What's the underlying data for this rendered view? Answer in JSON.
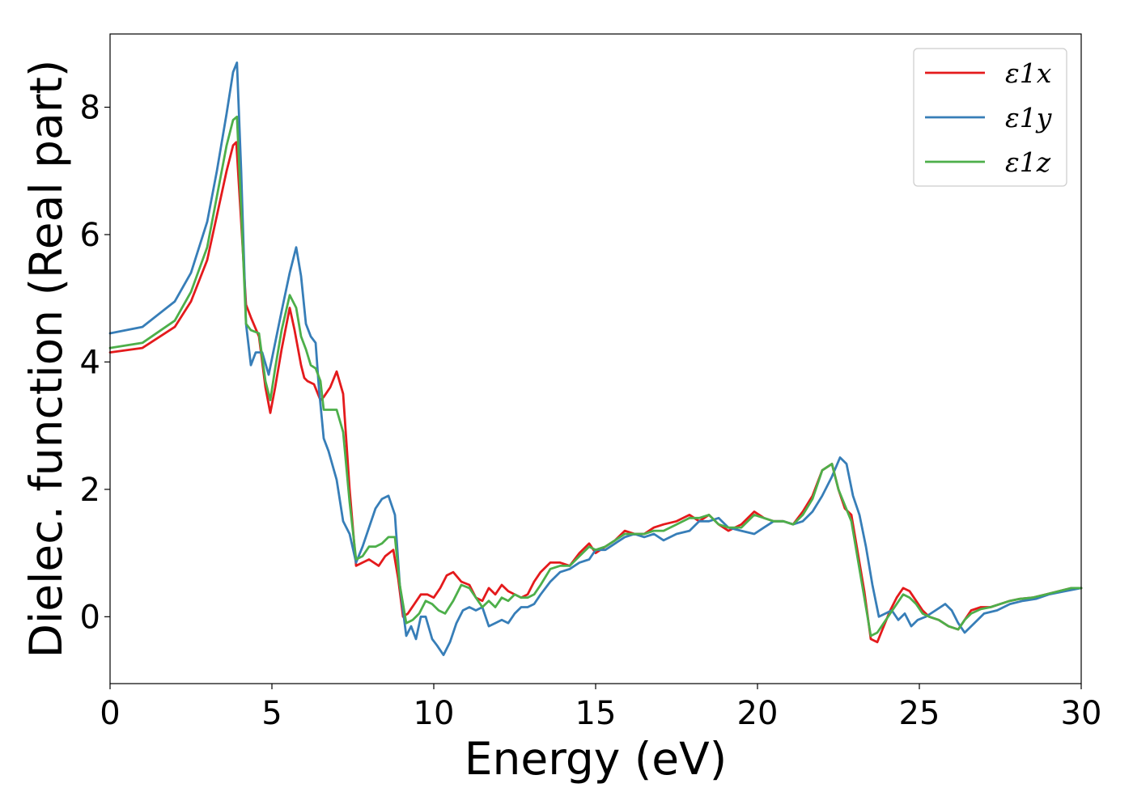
{
  "chart_data": {
    "type": "line",
    "title": "",
    "xlabel": "Energy (eV)",
    "ylabel": "Dielec. function (Real part)",
    "xlim": [
      0,
      30
    ],
    "ylim": [
      -1.05,
      9.15
    ],
    "xticks": [
      0,
      5,
      10,
      15,
      20,
      25,
      30
    ],
    "yticks": [
      0,
      2,
      4,
      6,
      8
    ],
    "grid": false,
    "legend_position": "top-right",
    "series": [
      {
        "name": "ε1x",
        "color": "#e41a1c",
        "x": [
          0,
          1,
          2,
          2.5,
          3,
          3.3,
          3.6,
          3.8,
          3.9,
          4.05,
          4.2,
          4.35,
          4.6,
          4.8,
          4.95,
          5.1,
          5.3,
          5.55,
          5.7,
          5.9,
          6.0,
          6.1,
          6.3,
          6.5,
          6.6,
          6.8,
          7.0,
          7.2,
          7.4,
          7.6,
          7.8,
          8.0,
          8.3,
          8.5,
          8.75,
          8.9,
          9.05,
          9.2,
          9.4,
          9.6,
          9.8,
          10.0,
          10.2,
          10.4,
          10.6,
          10.85,
          11.1,
          11.3,
          11.5,
          11.7,
          11.9,
          12.1,
          12.3,
          12.5,
          12.7,
          12.9,
          13.1,
          13.3,
          13.6,
          13.9,
          14.2,
          14.5,
          14.8,
          15.0,
          15.3,
          15.6,
          15.9,
          16.2,
          16.5,
          16.8,
          17.1,
          17.5,
          17.9,
          18.2,
          18.5,
          18.8,
          19.1,
          19.5,
          19.9,
          20.2,
          20.5,
          20.8,
          21.1,
          21.4,
          21.7,
          22.0,
          22.3,
          22.5,
          22.7,
          22.9,
          23.1,
          23.3,
          23.5,
          23.7,
          23.9,
          24.1,
          24.3,
          24.5,
          24.7,
          24.9,
          25.1,
          25.3,
          25.6,
          25.9,
          26.2,
          26.4,
          26.6,
          26.9,
          27.2,
          27.5,
          27.8,
          28.1,
          28.5,
          28.9,
          29.3,
          29.7,
          30.0
        ],
        "values": [
          4.15,
          4.22,
          4.55,
          4.95,
          5.6,
          6.3,
          7.0,
          7.4,
          7.45,
          6.2,
          4.9,
          4.7,
          4.4,
          3.6,
          3.2,
          3.6,
          4.2,
          4.85,
          4.5,
          3.95,
          3.75,
          3.7,
          3.65,
          3.4,
          3.45,
          3.6,
          3.85,
          3.5,
          2.0,
          0.8,
          0.85,
          0.9,
          0.8,
          0.95,
          1.05,
          0.6,
          0.0,
          0.05,
          0.2,
          0.35,
          0.35,
          0.3,
          0.45,
          0.65,
          0.7,
          0.55,
          0.5,
          0.3,
          0.25,
          0.45,
          0.35,
          0.5,
          0.4,
          0.35,
          0.3,
          0.35,
          0.55,
          0.7,
          0.85,
          0.85,
          0.8,
          1.0,
          1.15,
          1.0,
          1.1,
          1.2,
          1.35,
          1.3,
          1.3,
          1.4,
          1.45,
          1.5,
          1.6,
          1.5,
          1.6,
          1.45,
          1.35,
          1.45,
          1.65,
          1.55,
          1.5,
          1.5,
          1.45,
          1.65,
          1.9,
          2.3,
          2.4,
          2.0,
          1.7,
          1.6,
          1.0,
          0.4,
          -0.35,
          -0.4,
          -0.15,
          0.1,
          0.3,
          0.45,
          0.4,
          0.25,
          0.1,
          0.0,
          -0.05,
          -0.15,
          -0.2,
          -0.05,
          0.1,
          0.15,
          0.15,
          0.2,
          0.25,
          0.28,
          0.3,
          0.35,
          0.4,
          0.45,
          0.45
        ]
      },
      {
        "name": "ε1y",
        "color": "#377eb8",
        "x": [
          0,
          1,
          2,
          2.5,
          3,
          3.3,
          3.6,
          3.8,
          3.92,
          4.05,
          4.2,
          4.35,
          4.5,
          4.7,
          4.9,
          5.1,
          5.3,
          5.55,
          5.75,
          5.9,
          6.05,
          6.2,
          6.35,
          6.45,
          6.6,
          6.75,
          7.0,
          7.2,
          7.4,
          7.6,
          7.8,
          8.0,
          8.2,
          8.4,
          8.6,
          8.8,
          8.95,
          9.15,
          9.3,
          9.45,
          9.6,
          9.75,
          9.95,
          10.1,
          10.3,
          10.5,
          10.7,
          10.9,
          11.1,
          11.3,
          11.5,
          11.7,
          11.9,
          12.1,
          12.3,
          12.5,
          12.7,
          12.9,
          13.1,
          13.3,
          13.6,
          13.9,
          14.2,
          14.5,
          14.8,
          15.0,
          15.3,
          15.6,
          15.9,
          16.2,
          16.5,
          16.8,
          17.1,
          17.5,
          17.9,
          18.2,
          18.5,
          18.8,
          19.1,
          19.5,
          19.9,
          20.2,
          20.5,
          20.8,
          21.1,
          21.4,
          21.7,
          22.0,
          22.3,
          22.55,
          22.75,
          22.95,
          23.15,
          23.35,
          23.55,
          23.75,
          23.95,
          24.15,
          24.35,
          24.55,
          24.75,
          24.95,
          25.2,
          25.5,
          25.8,
          26.0,
          26.2,
          26.4,
          26.7,
          27.0,
          27.4,
          27.8,
          28.2,
          28.6,
          29.0,
          29.5,
          30.0
        ],
        "values": [
          4.45,
          4.55,
          4.95,
          5.4,
          6.2,
          7.0,
          7.9,
          8.55,
          8.7,
          7.0,
          4.6,
          3.95,
          4.15,
          4.15,
          3.8,
          4.3,
          4.8,
          5.4,
          5.8,
          5.35,
          4.6,
          4.4,
          4.3,
          3.6,
          2.8,
          2.6,
          2.15,
          1.5,
          1.3,
          0.85,
          1.1,
          1.4,
          1.7,
          1.85,
          1.9,
          1.6,
          0.5,
          -0.3,
          -0.15,
          -0.35,
          0.0,
          0.0,
          -0.35,
          -0.45,
          -0.6,
          -0.4,
          -0.1,
          0.1,
          0.15,
          0.1,
          0.15,
          -0.15,
          -0.1,
          -0.05,
          -0.1,
          0.05,
          0.15,
          0.15,
          0.2,
          0.35,
          0.55,
          0.7,
          0.75,
          0.85,
          0.9,
          1.05,
          1.05,
          1.15,
          1.25,
          1.3,
          1.25,
          1.3,
          1.2,
          1.3,
          1.35,
          1.5,
          1.5,
          1.55,
          1.4,
          1.35,
          1.3,
          1.4,
          1.5,
          1.5,
          1.45,
          1.5,
          1.65,
          1.9,
          2.2,
          2.5,
          2.4,
          1.9,
          1.6,
          1.1,
          0.5,
          0.0,
          0.05,
          0.1,
          -0.05,
          0.05,
          -0.15,
          -0.05,
          0.0,
          0.1,
          0.2,
          0.1,
          -0.1,
          -0.25,
          -0.1,
          0.05,
          0.1,
          0.2,
          0.25,
          0.28,
          0.35,
          0.4,
          0.45
        ]
      },
      {
        "name": "ε1z",
        "color": "#4daf4a",
        "x": [
          0,
          1,
          2,
          2.5,
          3,
          3.3,
          3.6,
          3.8,
          3.92,
          4.05,
          4.2,
          4.35,
          4.6,
          4.8,
          4.95,
          5.1,
          5.3,
          5.55,
          5.75,
          5.9,
          6.05,
          6.2,
          6.35,
          6.5,
          6.6,
          6.8,
          7.0,
          7.2,
          7.4,
          7.6,
          7.8,
          8.0,
          8.2,
          8.4,
          8.6,
          8.8,
          8.95,
          9.15,
          9.35,
          9.55,
          9.75,
          9.95,
          10.15,
          10.35,
          10.6,
          10.85,
          11.1,
          11.3,
          11.5,
          11.7,
          11.9,
          12.1,
          12.3,
          12.5,
          12.7,
          12.9,
          13.1,
          13.3,
          13.6,
          13.9,
          14.2,
          14.5,
          14.8,
          15.0,
          15.3,
          15.6,
          15.9,
          16.2,
          16.5,
          16.8,
          17.1,
          17.5,
          17.9,
          18.2,
          18.5,
          18.8,
          19.1,
          19.5,
          19.9,
          20.2,
          20.5,
          20.8,
          21.1,
          21.4,
          21.7,
          22.0,
          22.3,
          22.5,
          22.7,
          22.9,
          23.1,
          23.3,
          23.5,
          23.7,
          23.9,
          24.1,
          24.3,
          24.5,
          24.7,
          24.9,
          25.1,
          25.3,
          25.6,
          25.9,
          26.2,
          26.4,
          26.6,
          26.9,
          27.2,
          27.5,
          27.8,
          28.1,
          28.5,
          28.9,
          29.3,
          29.7,
          30.0
        ],
        "values": [
          4.22,
          4.3,
          4.65,
          5.1,
          5.8,
          6.6,
          7.4,
          7.8,
          7.85,
          6.4,
          4.6,
          4.5,
          4.45,
          3.7,
          3.4,
          3.9,
          4.5,
          5.05,
          4.85,
          4.4,
          4.2,
          3.95,
          3.9,
          3.7,
          3.25,
          3.25,
          3.25,
          2.9,
          1.8,
          0.9,
          0.95,
          1.1,
          1.1,
          1.15,
          1.25,
          1.25,
          0.5,
          -0.1,
          -0.05,
          0.05,
          0.25,
          0.2,
          0.1,
          0.05,
          0.25,
          0.5,
          0.45,
          0.3,
          0.15,
          0.25,
          0.15,
          0.3,
          0.25,
          0.35,
          0.3,
          0.3,
          0.35,
          0.5,
          0.75,
          0.8,
          0.8,
          0.95,
          1.1,
          1.05,
          1.1,
          1.2,
          1.3,
          1.3,
          1.3,
          1.35,
          1.35,
          1.45,
          1.55,
          1.55,
          1.6,
          1.45,
          1.4,
          1.4,
          1.6,
          1.55,
          1.5,
          1.5,
          1.45,
          1.6,
          1.85,
          2.3,
          2.4,
          2.0,
          1.75,
          1.5,
          0.9,
          0.3,
          -0.3,
          -0.25,
          -0.1,
          0.05,
          0.2,
          0.35,
          0.3,
          0.2,
          0.05,
          0.0,
          -0.05,
          -0.15,
          -0.2,
          -0.05,
          0.05,
          0.12,
          0.15,
          0.2,
          0.25,
          0.28,
          0.3,
          0.35,
          0.4,
          0.45,
          0.45
        ]
      }
    ]
  }
}
